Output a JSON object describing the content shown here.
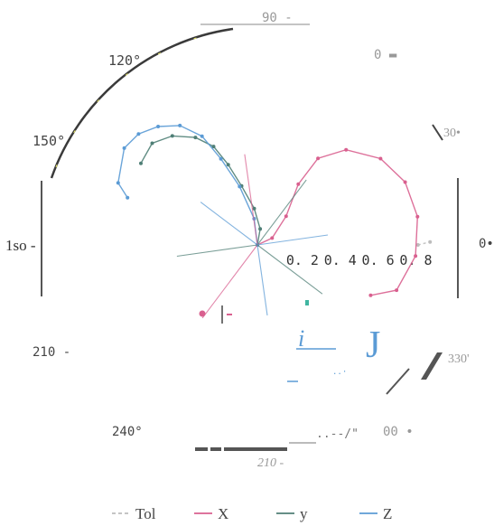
{
  "chart_data": {
    "type": "line",
    "subtype": "polar",
    "title": "",
    "angle_labels": [
      {
        "text": "90",
        "angle": 90
      },
      {
        "text": "120°",
        "angle": 120
      },
      {
        "text": "150°",
        "angle": 150
      },
      {
        "text": "1so",
        "angle": 180
      },
      {
        "text": "210",
        "angle": 210
      },
      {
        "text": "240°",
        "angle": 240
      },
      {
        "text": "210",
        "angle": 270
      },
      {
        "text": "00",
        "angle": 300
      },
      {
        "text": "330'",
        "angle": 330
      },
      {
        "text": "0",
        "angle": 0
      },
      {
        "text": "30",
        "angle": 30
      },
      {
        "text": "0",
        "angle": 45
      }
    ],
    "radial_ticks": [
      "0. 2",
      "0. 4",
      "0. 6",
      "0. 8"
    ],
    "radial_range": [
      0,
      0.9
    ],
    "grid": false,
    "legend_position": "bottom",
    "legend": [
      {
        "label": "Tol",
        "color": "#bdbdbd",
        "dashed": true
      },
      {
        "label": "X",
        "color": "#d9608f",
        "dashed": false
      },
      {
        "label": "y",
        "color": "#4f7f76",
        "dashed": false
      },
      {
        "label": "Z",
        "color": "#5b9bd5",
        "dashed": false
      }
    ],
    "series": [
      {
        "name": "Tol",
        "color": "#bdbdbd",
        "points": [
          [
            0.79,
            0
          ],
          [
            0.85,
            1
          ]
        ]
      },
      {
        "name": "X",
        "color": "#d9608f",
        "points": [
          [
            0,
            0
          ],
          [
            0.08,
            25
          ],
          [
            0.2,
            45
          ],
          [
            0.36,
            56
          ],
          [
            0.52,
            55
          ],
          [
            0.64,
            47
          ],
          [
            0.74,
            35
          ],
          [
            0.79,
            23
          ],
          [
            0.8,
            10
          ],
          [
            0.78,
            -4
          ],
          [
            0.72,
            -18
          ],
          [
            0.61,
            -24
          ]
        ]
      },
      {
        "name": "y",
        "color": "#4f7f76",
        "points": [
          [
            0,
            0
          ],
          [
            0.08,
            80
          ],
          [
            0.18,
            95
          ],
          [
            0.3,
            105
          ],
          [
            0.42,
            110
          ],
          [
            0.53,
            114
          ],
          [
            0.61,
            120
          ],
          [
            0.68,
            128
          ],
          [
            0.72,
            136
          ],
          [
            0.7,
            145
          ]
        ]
      },
      {
        "name": "Z",
        "color": "#5b9bd5",
        "points": [
          [
            0,
            0
          ],
          [
            0.13,
            97
          ],
          [
            0.3,
            107
          ],
          [
            0.46,
            113
          ],
          [
            0.6,
            117
          ],
          [
            0.7,
            123
          ],
          [
            0.76,
            130
          ],
          [
            0.8,
            137
          ],
          [
            0.81,
            144
          ],
          [
            0.75,
            156
          ],
          [
            0.68,
            160
          ]
        ]
      }
    ],
    "extra_marks": [
      {
        "text": "i"
      },
      {
        "text": "J"
      },
      {
        "text": "..--/\""
      }
    ]
  }
}
